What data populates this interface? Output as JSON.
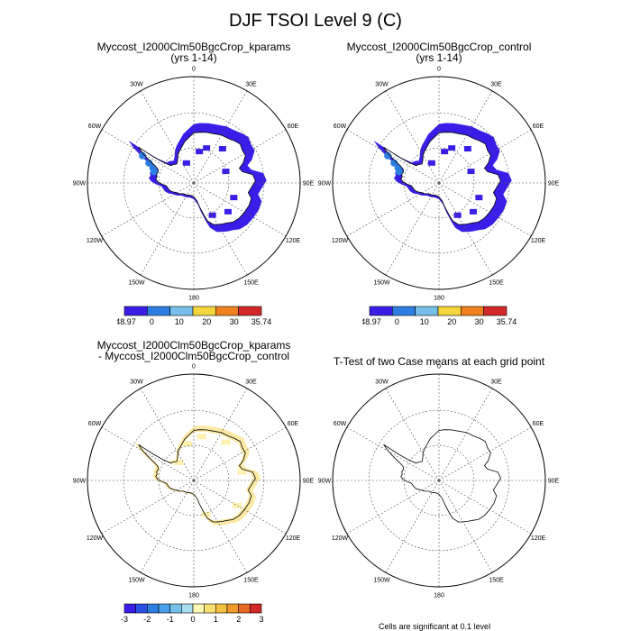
{
  "title": "DJF TSOI Level 9 (C)",
  "panels": [
    {
      "id": "kparams",
      "title_lines": [
        "Myccost_I2000Clm50BgcCrop_kparams",
        "(yrs 1-14)"
      ],
      "field": "absolute",
      "colorbar": {
        "colors": [
          "#3a1ee8",
          "#2c7fe0",
          "#74c0e8",
          "#f4d63c",
          "#f08020",
          "#d22828"
        ],
        "labels": [
          "-48.97",
          "0",
          "10",
          "20",
          "30",
          "35.74"
        ]
      }
    },
    {
      "id": "control",
      "title_lines": [
        "Myccost_I2000Clm50BgcCrop_control",
        "(yrs 1-14)"
      ],
      "field": "absolute",
      "colorbar": {
        "colors": [
          "#3a1ee8",
          "#2c7fe0",
          "#74c0e8",
          "#f4d63c",
          "#f08020",
          "#d22828"
        ],
        "labels": [
          "-48.97",
          "0",
          "10",
          "20",
          "30",
          "35.74"
        ]
      }
    },
    {
      "id": "difference",
      "title_lines": [
        "Myccost_I2000Clm50BgcCrop_kparams",
        "- Myccost_I2000Clm50BgcCrop_control"
      ],
      "field": "difference",
      "colorbar": {
        "colors": [
          "#3a1ee8",
          "#2c50e6",
          "#2c7fe0",
          "#4aa0ea",
          "#74c0e8",
          "#a8dcf0",
          "#fff8b4",
          "#f8e070",
          "#f4c040",
          "#f09a2c",
          "#e86a22",
          "#d22828"
        ],
        "labels": [
          "-3",
          "-2",
          "-1",
          "0",
          "1",
          "2",
          "3"
        ]
      }
    },
    {
      "id": "ttest",
      "title_lines": [
        "T-Test of two Case means at each grid point"
      ],
      "field": "none",
      "footnote": "Cells are significant at 0.1 level"
    }
  ],
  "map": {
    "projection": "south-polar-stereographic",
    "lon_labels": [
      {
        "lon": 0,
        "text": "0"
      },
      {
        "lon": 30,
        "text": "30E"
      },
      {
        "lon": 60,
        "text": "60E"
      },
      {
        "lon": 90,
        "text": "90E"
      },
      {
        "lon": 120,
        "text": "120E"
      },
      {
        "lon": 150,
        "text": "150E"
      },
      {
        "lon": 180,
        "text": "180"
      },
      {
        "lon": -150,
        "text": "150W"
      },
      {
        "lon": -120,
        "text": "120W"
      },
      {
        "lon": -90,
        "text": "90W"
      },
      {
        "lon": -60,
        "text": "60W"
      },
      {
        "lon": -30,
        "text": "30W"
      }
    ]
  }
}
